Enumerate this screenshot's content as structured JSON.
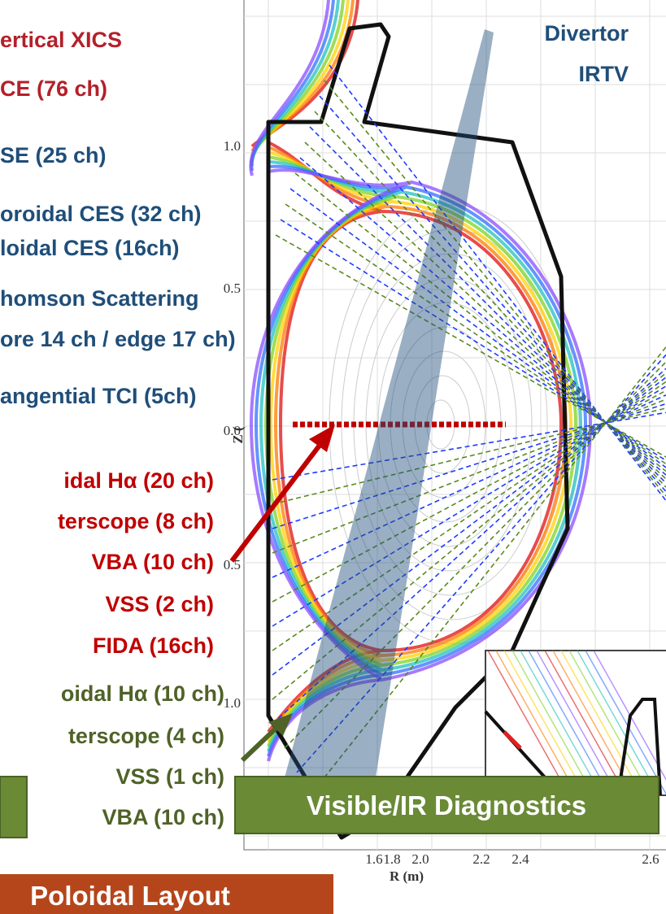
{
  "left_labels": {
    "red_top": [
      "ertical XICS",
      "CE (76 ch)"
    ],
    "blue": [
      "SE (25 ch)",
      "oroidal CES (32 ch)",
      "loidal CES (16ch)",
      "homson Scattering",
      "ore 14 ch / edge 17 ch)",
      "angential TCI (5ch)"
    ],
    "red_bottom": [
      "idal Hα (20 ch)",
      "terscope (8 ch)",
      "VBA (10 ch)",
      "VSS (2 ch)",
      "FIDA (16ch)"
    ],
    "green": [
      "oidal Hα (10 ch)",
      "terscope (4 ch)",
      "VSS (1 ch)",
      "VBA (10 ch)"
    ]
  },
  "divertor_label": [
    "Divertor",
    "IRTV"
  ],
  "axis": {
    "z_ticks": [
      "1.0",
      "0.5",
      "0.0",
      "0.5",
      "1.0"
    ],
    "z_label": "Z (",
    "r_ticks": [
      "1.6",
      "1.8",
      "2.0",
      "2.2",
      "2.4",
      "2.6"
    ],
    "r_label": "R (m)"
  },
  "boxes": {
    "visible_ir": "Visible/IR Diagnostics",
    "poloidal": "Poloidal Layout"
  }
}
